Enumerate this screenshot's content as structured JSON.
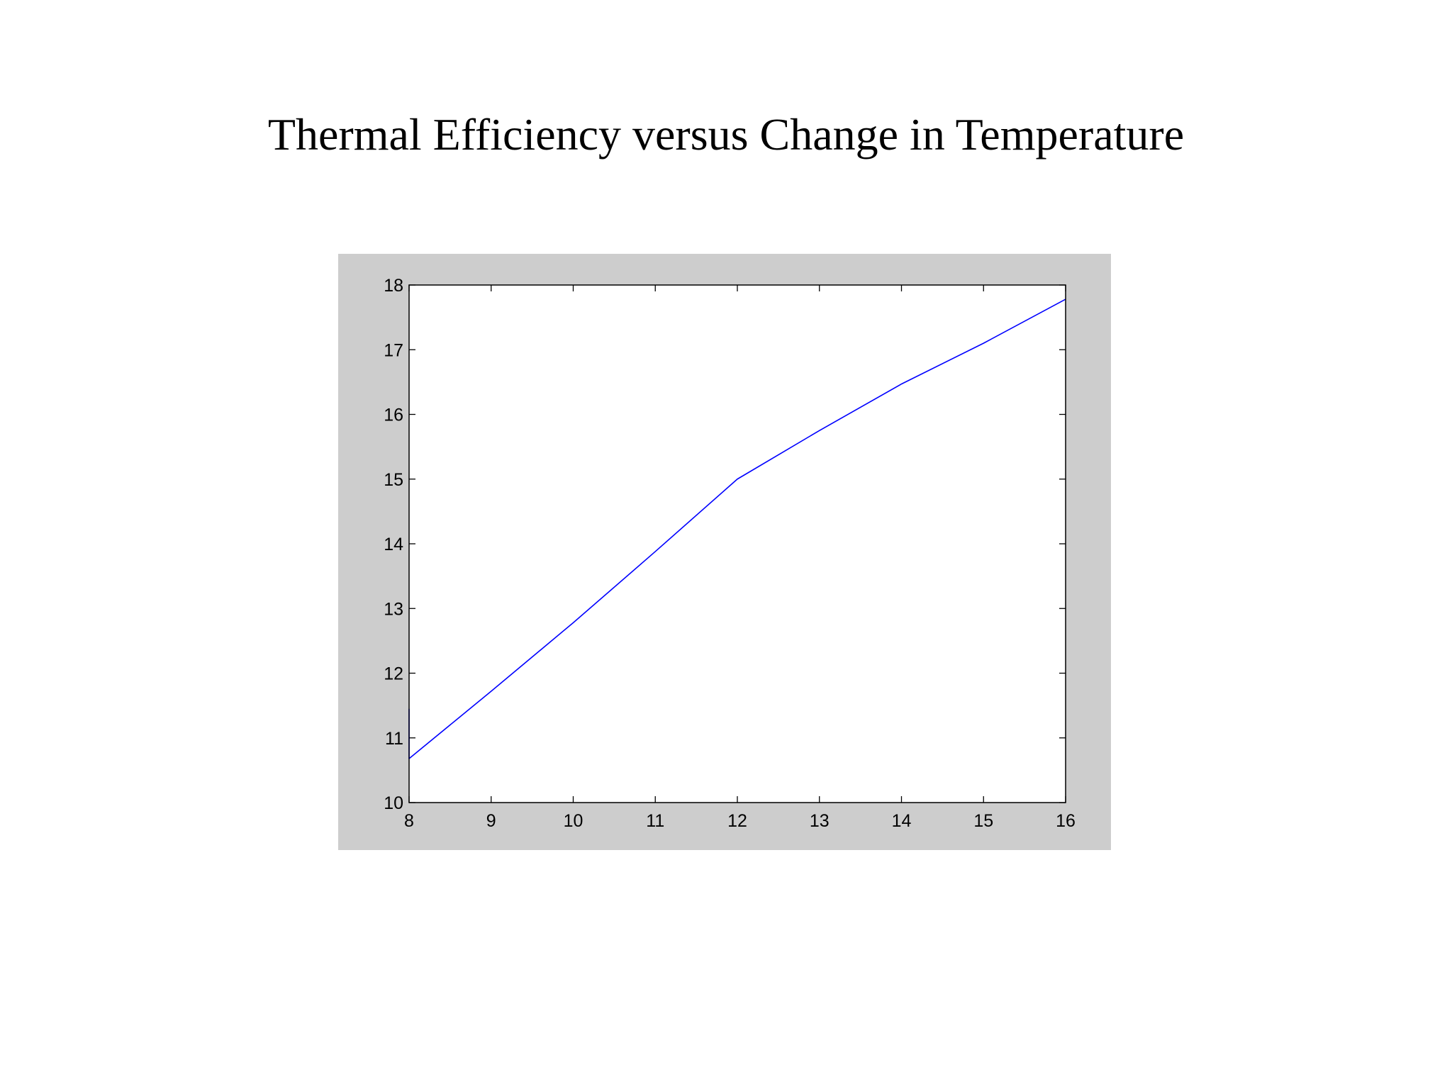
{
  "slide": {
    "title": "Thermal Efficiency versus Change in Temperature"
  },
  "chart_data": {
    "type": "line",
    "title": "",
    "xlabel": "",
    "ylabel": "",
    "xlim": [
      8,
      16
    ],
    "ylim": [
      10,
      18
    ],
    "xticks": [
      "8",
      "9",
      "10",
      "11",
      "12",
      "13",
      "14",
      "15",
      "16"
    ],
    "yticks": [
      "10",
      "11",
      "12",
      "13",
      "14",
      "15",
      "16",
      "17",
      "18"
    ],
    "grid": false,
    "legend": "none",
    "colors": {
      "figure_background": "#cdcdcd",
      "axes_background": "#ffffff",
      "axes_frame": "#000000",
      "series_line": "#0000ff"
    },
    "series": [
      {
        "x": [
          8,
          8,
          9,
          10,
          11,
          12,
          13,
          14,
          15,
          16
        ],
        "y": [
          11.45,
          10.68,
          11.72,
          12.78,
          13.88,
          15.0,
          15.75,
          16.47,
          17.1,
          17.78
        ]
      }
    ]
  }
}
